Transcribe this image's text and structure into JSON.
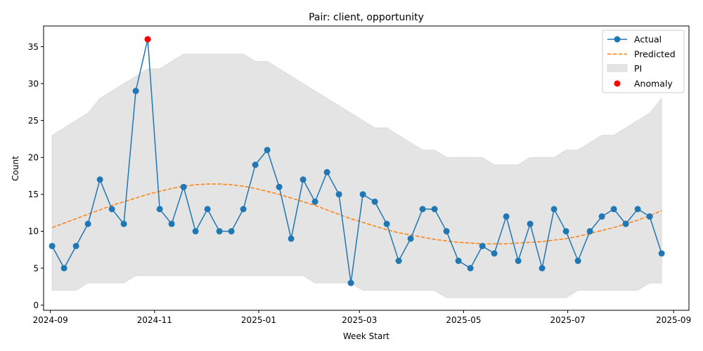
{
  "chart_data": {
    "type": "line",
    "title": "Pair: client, opportunity",
    "xlabel": "Week Start",
    "ylabel": "Count",
    "x_ticks": [
      "2024-09",
      "2024-11",
      "2025-01",
      "2025-03",
      "2025-05",
      "2025-07",
      "2025-09"
    ],
    "y_ticks": [
      "0",
      "5",
      "10",
      "15",
      "20",
      "25",
      "30",
      "35"
    ],
    "xlim": [
      "2024-08-28",
      "2025-09-10"
    ],
    "ylim": [
      -0.7,
      37.8
    ],
    "grid": false,
    "legend_position": "top-right",
    "x": [
      "2024-09-02",
      "2024-09-09",
      "2024-09-16",
      "2024-09-23",
      "2024-09-30",
      "2024-10-07",
      "2024-10-14",
      "2024-10-21",
      "2024-10-28",
      "2024-11-04",
      "2024-11-11",
      "2024-11-18",
      "2024-11-25",
      "2024-12-02",
      "2024-12-09",
      "2024-12-16",
      "2024-12-23",
      "2024-12-30",
      "2025-01-06",
      "2025-01-13",
      "2025-01-20",
      "2025-01-27",
      "2025-02-03",
      "2025-02-10",
      "2025-02-17",
      "2025-02-24",
      "2025-03-03",
      "2025-03-10",
      "2025-03-17",
      "2025-03-24",
      "2025-03-31",
      "2025-04-07",
      "2025-04-14",
      "2025-04-21",
      "2025-04-28",
      "2025-05-05",
      "2025-05-12",
      "2025-05-19",
      "2025-05-26",
      "2025-06-02",
      "2025-06-09",
      "2025-06-16",
      "2025-06-23",
      "2025-06-30",
      "2025-07-07",
      "2025-07-14",
      "2025-07-21",
      "2025-07-28",
      "2025-08-04",
      "2025-08-11",
      "2025-08-18",
      "2025-08-25"
    ],
    "series": [
      {
        "name": "Actual",
        "color": "#1f77b4",
        "style": "solid line with circle markers",
        "values": [
          8,
          5,
          8,
          11,
          17,
          13,
          11,
          29,
          36,
          13,
          11,
          16,
          10,
          13,
          10,
          10,
          13,
          19,
          21,
          16,
          9,
          17,
          14,
          18,
          15,
          3,
          15,
          14,
          11,
          6,
          9,
          13,
          13,
          10,
          6,
          5,
          8,
          7,
          12,
          6,
          11,
          5,
          13,
          10,
          6,
          10,
          12,
          13,
          11,
          13,
          12,
          7
        ]
      },
      {
        "name": "Predicted",
        "color": "#ff7f0e",
        "style": "dashed line",
        "values": [
          10.5,
          11.1,
          11.7,
          12.3,
          12.9,
          13.5,
          14.0,
          14.5,
          15.0,
          15.4,
          15.8,
          16.1,
          16.3,
          16.4,
          16.4,
          16.3,
          16.1,
          15.8,
          15.4,
          15.0,
          14.5,
          14.0,
          13.5,
          12.9,
          12.3,
          11.7,
          11.2,
          10.7,
          10.2,
          9.8,
          9.5,
          9.2,
          8.9,
          8.7,
          8.5,
          8.4,
          8.3,
          8.3,
          8.3,
          8.4,
          8.5,
          8.6,
          8.8,
          9.0,
          9.3,
          9.7,
          10.1,
          10.5,
          11.0,
          11.5,
          12.1,
          12.8
        ]
      }
    ],
    "interval": {
      "name": "PI",
      "color": "#e4e4e4",
      "lower": [
        2,
        2,
        2,
        3,
        3,
        3,
        3,
        4,
        4,
        4,
        4,
        4,
        4,
        4,
        4,
        4,
        4,
        4,
        4,
        4,
        4,
        4,
        3,
        3,
        3,
        3,
        2,
        2,
        2,
        2,
        2,
        2,
        2,
        1,
        1,
        1,
        1,
        1,
        1,
        1,
        1,
        1,
        1,
        1,
        2,
        2,
        2,
        2,
        2,
        2,
        3,
        3
      ],
      "upper": [
        23,
        24,
        25,
        26,
        28,
        29,
        30,
        31,
        32,
        32,
        33,
        34,
        34,
        34,
        34,
        34,
        34,
        33,
        33,
        32,
        31,
        30,
        29,
        28,
        27,
        26,
        25,
        24,
        24,
        23,
        22,
        21,
        21,
        20,
        20,
        20,
        20,
        19,
        19,
        19,
        20,
        20,
        20,
        21,
        21,
        22,
        23,
        23,
        24,
        25,
        26,
        28
      ]
    },
    "anomalies": {
      "name": "Anomaly",
      "color": "#ff0000",
      "points": [
        {
          "x": "2024-10-28",
          "y": 36
        }
      ]
    }
  }
}
